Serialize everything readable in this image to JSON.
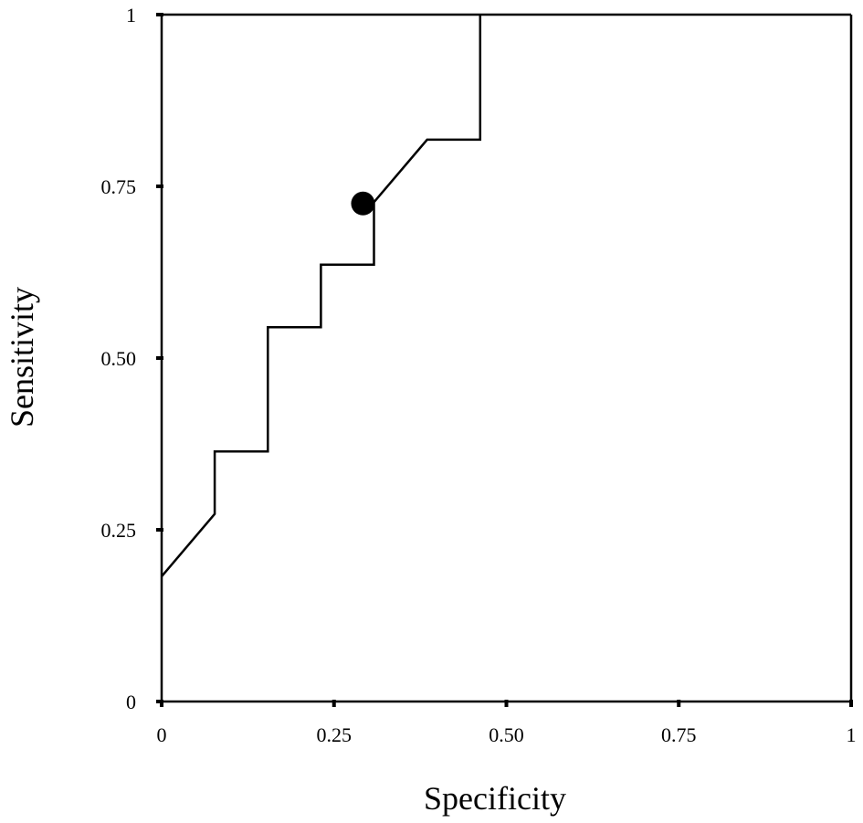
{
  "chart_data": {
    "type": "line",
    "title": "",
    "xlabel": "Specificity",
    "ylabel": "Sensitivity",
    "xlim": [
      0,
      1
    ],
    "ylim": [
      0,
      1
    ],
    "grid": false,
    "x_ticks": [
      {
        "value": 0,
        "label": "0"
      },
      {
        "value": 0.25,
        "label": "0.25"
      },
      {
        "value": 0.5,
        "label": "0.50"
      },
      {
        "value": 0.75,
        "label": "0.75"
      },
      {
        "value": 1,
        "label": "1"
      }
    ],
    "y_ticks": [
      {
        "value": 0,
        "label": "0"
      },
      {
        "value": 0.25,
        "label": "0.25"
      },
      {
        "value": 0.5,
        "label": "0.50"
      },
      {
        "value": 0.75,
        "label": "0.75"
      },
      {
        "value": 1,
        "label": "1"
      }
    ],
    "series": [
      {
        "points": [
          [
            0,
            0.182
          ],
          [
            0.077,
            0.273
          ],
          [
            0.077,
            0.364
          ],
          [
            0.154,
            0.364
          ],
          [
            0.154,
            0.545
          ],
          [
            0.231,
            0.545
          ],
          [
            0.231,
            0.636
          ],
          [
            0.308,
            0.636
          ],
          [
            0.308,
            0.727
          ],
          [
            0.385,
            0.818
          ],
          [
            0.462,
            0.818
          ],
          [
            0.462,
            1.0
          ]
        ]
      }
    ],
    "highlight_point": {
      "x": 0.292,
      "y": 0.725
    },
    "colors": {
      "line": "#000000",
      "marker": "#000000",
      "axes": "#000000",
      "background": "#ffffff"
    }
  }
}
